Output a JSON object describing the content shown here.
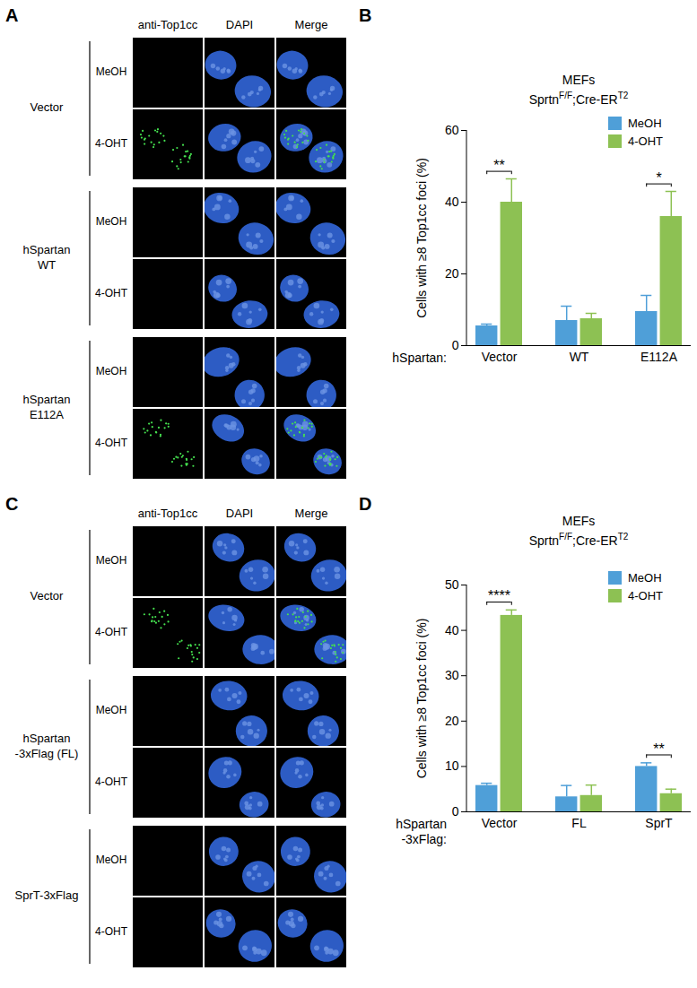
{
  "panels": [
    {
      "panel_label": "A",
      "columns": [
        "anti-Top1cc",
        "DAPI",
        "Merge"
      ],
      "groups": [
        {
          "label": "Vector",
          "rows": [
            {
              "label": "MeOH",
              "foci": false
            },
            {
              "label": "4-OHT",
              "foci": true
            }
          ]
        },
        {
          "label": "hSpartan WT",
          "rows": [
            {
              "label": "MeOH",
              "foci": false
            },
            {
              "label": "4-OHT",
              "foci": false
            }
          ]
        },
        {
          "label": "hSpartan E112A",
          "rows": [
            {
              "label": "MeOH",
              "foci": false
            },
            {
              "label": "4-OHT",
              "foci": true
            }
          ]
        }
      ]
    },
    {
      "panel_label": "C",
      "columns": [
        "anti-Top1cc",
        "DAPI",
        "Merge"
      ],
      "groups": [
        {
          "label": "Vector",
          "rows": [
            {
              "label": "MeOH",
              "foci": false
            },
            {
              "label": "4-OHT",
              "foci": true
            }
          ]
        },
        {
          "label": "hSpartan -3xFlag (FL)",
          "rows": [
            {
              "label": "MeOH",
              "foci": false
            },
            {
              "label": "4-OHT",
              "foci": false
            }
          ]
        },
        {
          "label": "SprT-3xFlag",
          "rows": [
            {
              "label": "MeOH",
              "foci": false
            },
            {
              "label": "4-OHT",
              "foci": false
            }
          ]
        }
      ]
    }
  ],
  "chart_data": [
    {
      "panel_label": "B",
      "type": "bar",
      "title": "MEFs",
      "subtitle": [
        "Sprtn",
        "F/F",
        ";Cre-ER",
        "T2"
      ],
      "categories": [
        "Vector",
        "WT",
        "E112A"
      ],
      "x_label": "hSpartan:",
      "y_label": "Cells with ≥8 Top1cc foci (%)",
      "series": [
        {
          "name": "MeOH",
          "color": "#4f9fd8",
          "values": [
            5.5,
            7,
            9.5
          ],
          "errors": [
            0.5,
            4,
            4.5
          ]
        },
        {
          "name": "4-OHT",
          "color": "#8dc153",
          "values": [
            40,
            7.5,
            36
          ],
          "errors": [
            6.5,
            1.5,
            7
          ]
        }
      ],
      "ylim": [
        0,
        60
      ],
      "yticks": [
        0,
        20,
        40,
        60
      ],
      "legend": "top-right",
      "annotations": [
        {
          "category": "Vector",
          "text": "**"
        },
        {
          "category": "E112A",
          "text": "*"
        }
      ]
    },
    {
      "panel_label": "D",
      "type": "bar",
      "title": "MEFs",
      "subtitle": [
        "Sprtn",
        "F/F",
        ";Cre-ER",
        "T2"
      ],
      "categories": [
        "Vector",
        "FL",
        "SprT"
      ],
      "x_label": "hSpartan -3xFlag:",
      "y_label": "Cells with ≥8 Top1cc foci (%)",
      "series": [
        {
          "name": "MeOH",
          "color": "#4f9fd8",
          "values": [
            5.8,
            3.3,
            10
          ],
          "errors": [
            0.5,
            2.5,
            0.8
          ]
        },
        {
          "name": "4-OHT",
          "color": "#8dc153",
          "values": [
            43.3,
            3.6,
            4
          ],
          "errors": [
            1.2,
            2.3,
            1
          ]
        }
      ],
      "ylim": [
        0,
        50
      ],
      "yticks": [
        0,
        10,
        20,
        30,
        40,
        50
      ],
      "legend": "top-right",
      "annotations": [
        {
          "category": "Vector",
          "text": "****"
        },
        {
          "category": "SprT",
          "text": "**"
        }
      ]
    }
  ]
}
